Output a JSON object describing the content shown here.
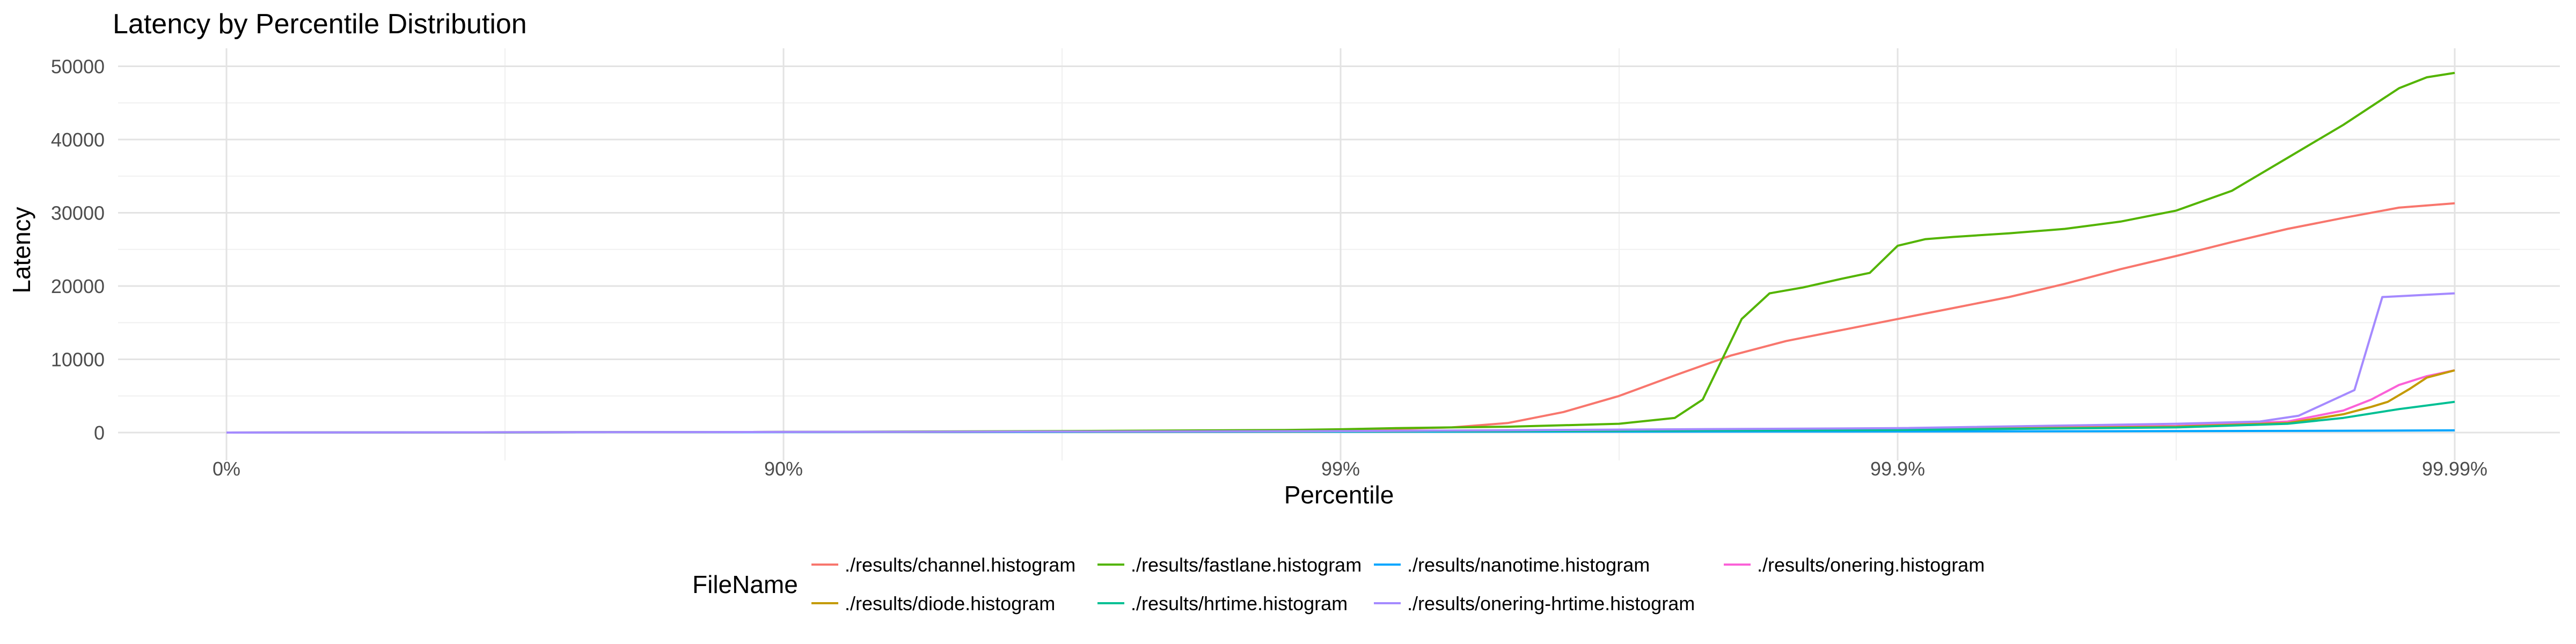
{
  "chart_data": {
    "type": "line",
    "title": "Latency by Percentile Distribution",
    "xlabel": "Percentile",
    "ylabel": "Latency",
    "x_scale": "percentile-nines (log of 1/(1-p))",
    "x_tick_labels": [
      "0%",
      "90%",
      "99%",
      "99.9%",
      "99.99%"
    ],
    "ylim": [
      0,
      52000
    ],
    "y_ticks": [
      0,
      10000,
      20000,
      30000,
      40000,
      50000
    ],
    "y_tick_labels": [
      "0",
      "10000",
      "20000",
      "30000",
      "40000",
      "50000"
    ],
    "grid": true,
    "legend": {
      "title": "FileName",
      "position": "bottom"
    },
    "series": [
      {
        "name": "./results/channel.histogram",
        "color": "#F8766D",
        "points": [
          [
            0,
            0
          ],
          [
            0.5,
            20
          ],
          [
            1,
            80
          ],
          [
            1.5,
            150
          ],
          [
            1.9,
            300
          ],
          [
            2,
            400
          ],
          [
            2.1,
            500
          ],
          [
            2.2,
            700
          ],
          [
            2.3,
            1300
          ],
          [
            2.4,
            2800
          ],
          [
            2.5,
            5000
          ],
          [
            2.6,
            7800
          ],
          [
            2.7,
            10500
          ],
          [
            2.8,
            12500
          ],
          [
            2.9,
            14000
          ],
          [
            3,
            15500
          ],
          [
            3.1,
            17000
          ],
          [
            3.2,
            18500
          ],
          [
            3.3,
            20300
          ],
          [
            3.4,
            22300
          ],
          [
            3.5,
            24100
          ],
          [
            3.6,
            26000
          ],
          [
            3.7,
            27800
          ],
          [
            3.8,
            29300
          ],
          [
            3.9,
            30700
          ],
          [
            4,
            31300
          ]
        ]
      },
      {
        "name": "./results/fastlane.histogram",
        "color": "#53B400",
        "points": [
          [
            0,
            0
          ],
          [
            0.5,
            20
          ],
          [
            1,
            80
          ],
          [
            1.5,
            200
          ],
          [
            1.9,
            350
          ],
          [
            2,
            450
          ],
          [
            2.1,
            600
          ],
          [
            2.2,
            700
          ],
          [
            2.3,
            800
          ],
          [
            2.4,
            1000
          ],
          [
            2.5,
            1200
          ],
          [
            2.6,
            2000
          ],
          [
            2.65,
            4500
          ],
          [
            2.72,
            15500
          ],
          [
            2.77,
            19000
          ],
          [
            2.83,
            19800
          ],
          [
            2.9,
            21000
          ],
          [
            2.95,
            21800
          ],
          [
            3,
            25500
          ],
          [
            3.05,
            26400
          ],
          [
            3.1,
            26700
          ],
          [
            3.2,
            27200
          ],
          [
            3.3,
            27800
          ],
          [
            3.4,
            28800
          ],
          [
            3.5,
            30300
          ],
          [
            3.6,
            33000
          ],
          [
            3.7,
            37500
          ],
          [
            3.8,
            42000
          ],
          [
            3.9,
            47000
          ],
          [
            3.95,
            48500
          ],
          [
            4,
            49100
          ]
        ]
      },
      {
        "name": "./results/nanotime.histogram",
        "color": "#00A6FF",
        "points": [
          [
            0,
            0
          ],
          [
            1,
            50
          ],
          [
            2,
            100
          ],
          [
            2.5,
            120
          ],
          [
            3,
            150
          ],
          [
            3.5,
            200
          ],
          [
            3.8,
            250
          ],
          [
            4,
            300
          ]
        ]
      },
      {
        "name": "./results/onering.histogram",
        "color": "#FB61D7",
        "points": [
          [
            0,
            0
          ],
          [
            1,
            80
          ],
          [
            2,
            150
          ],
          [
            2.5,
            250
          ],
          [
            3,
            500
          ],
          [
            3.5,
            900
          ],
          [
            3.7,
            1500
          ],
          [
            3.8,
            3000
          ],
          [
            3.85,
            4500
          ],
          [
            3.9,
            6500
          ],
          [
            3.95,
            7700
          ],
          [
            4,
            8500
          ]
        ]
      },
      {
        "name": "./results/diode.histogram",
        "color": "#C49A00",
        "points": [
          [
            0,
            0
          ],
          [
            1,
            80
          ],
          [
            2,
            150
          ],
          [
            2.5,
            250
          ],
          [
            3,
            400
          ],
          [
            3.5,
            800
          ],
          [
            3.7,
            1300
          ],
          [
            3.8,
            2500
          ],
          [
            3.85,
            3500
          ],
          [
            3.88,
            4200
          ],
          [
            3.92,
            6000
          ],
          [
            3.95,
            7500
          ],
          [
            4,
            8500
          ]
        ]
      },
      {
        "name": "./results/hrtime.histogram",
        "color": "#00C094",
        "points": [
          [
            0,
            0
          ],
          [
            1,
            80
          ],
          [
            2,
            150
          ],
          [
            2.5,
            250
          ],
          [
            3,
            350
          ],
          [
            3.5,
            700
          ],
          [
            3.7,
            1200
          ],
          [
            3.8,
            2000
          ],
          [
            3.9,
            3200
          ],
          [
            4,
            4200
          ]
        ]
      },
      {
        "name": "./results/onering-hrtime.histogram",
        "color": "#A58AFF",
        "points": [
          [
            0,
            0
          ],
          [
            1,
            80
          ],
          [
            2,
            200
          ],
          [
            2.5,
            400
          ],
          [
            3,
            600
          ],
          [
            3.5,
            1200
          ],
          [
            3.65,
            1500
          ],
          [
            3.72,
            2300
          ],
          [
            3.82,
            5800
          ],
          [
            3.87,
            18500
          ],
          [
            4,
            19000
          ]
        ]
      }
    ],
    "legend_order": [
      "./results/channel.histogram",
      "./results/fastlane.histogram",
      "./results/nanotime.histogram",
      "./results/onering.histogram",
      "./results/diode.histogram",
      "./results/hrtime.histogram",
      "./results/onering-hrtime.histogram"
    ]
  }
}
